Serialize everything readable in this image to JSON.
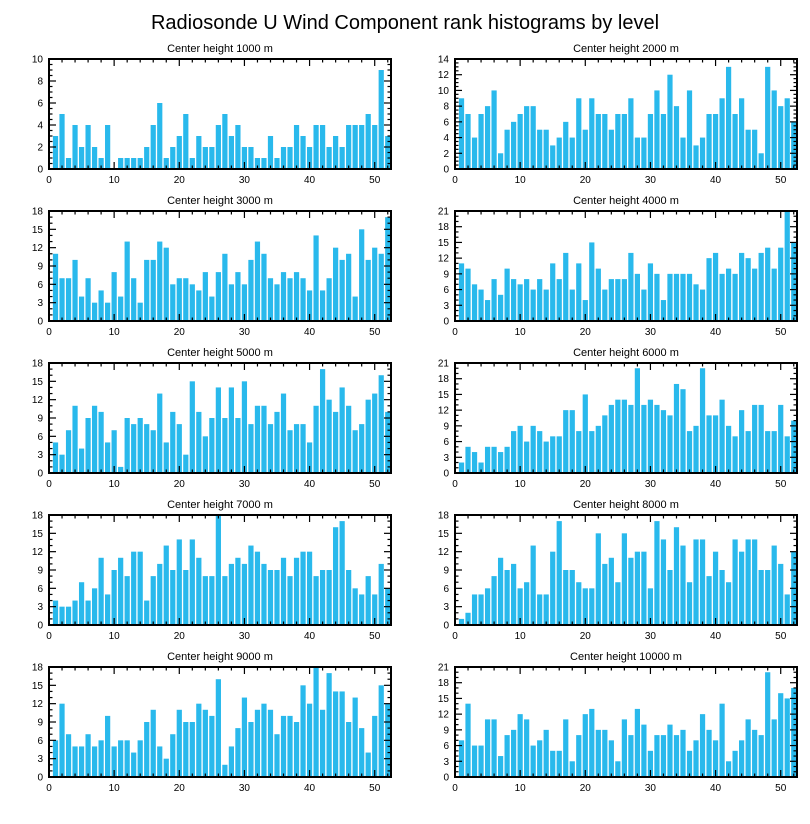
{
  "title": "Radiosonde U Wind Component rank histograms by level",
  "style": {
    "bar_color": "#29B9EC",
    "axis_color": "#000000",
    "background": "#FFFFFF"
  },
  "chart_data": [
    {
      "type": "bar",
      "title": "Center height 1000 m",
      "xlabel": "",
      "ylabel": "",
      "x_meaning": "rank (1..52)",
      "xlim": [
        0,
        52.5
      ],
      "xticks": [
        0,
        10,
        20,
        30,
        40,
        50
      ],
      "ylim": [
        0,
        10
      ],
      "ystep": 2,
      "grid": false,
      "legend": false,
      "values": [
        3,
        5,
        1,
        4,
        2,
        4,
        2,
        1,
        4,
        0,
        1,
        1,
        1,
        1,
        2,
        4,
        6,
        1,
        2,
        3,
        5,
        1,
        3,
        2,
        2,
        4,
        5,
        3,
        4,
        2,
        2,
        1,
        1,
        3,
        1,
        2,
        2,
        4,
        3,
        2,
        4,
        4,
        2,
        3,
        2,
        4,
        4,
        4,
        5,
        4,
        9,
        3
      ]
    },
    {
      "type": "bar",
      "title": "Center height 2000 m",
      "xlabel": "",
      "ylabel": "",
      "x_meaning": "rank (1..52)",
      "xlim": [
        0,
        52.5
      ],
      "xticks": [
        0,
        10,
        20,
        30,
        40,
        50
      ],
      "ylim": [
        0,
        14
      ],
      "ystep": 2,
      "grid": false,
      "legend": false,
      "values": [
        9,
        7,
        4,
        7,
        8,
        10,
        2,
        5,
        6,
        7,
        8,
        8,
        5,
        5,
        3,
        4,
        6,
        4,
        9,
        5,
        9,
        7,
        7,
        5,
        7,
        7,
        9,
        4,
        4,
        7,
        10,
        7,
        12,
        8,
        4,
        10,
        3,
        4,
        7,
        7,
        9,
        13,
        7,
        9,
        5,
        5,
        2,
        13,
        10,
        8,
        9,
        6
      ]
    },
    {
      "type": "bar",
      "title": "Center height 3000 m",
      "xlabel": "",
      "ylabel": "",
      "x_meaning": "rank (1..52)",
      "xlim": [
        0,
        52.5
      ],
      "xticks": [
        0,
        10,
        20,
        30,
        40,
        50
      ],
      "ylim": [
        0,
        18
      ],
      "ystep": 3,
      "grid": false,
      "legend": false,
      "values": [
        11,
        7,
        7,
        10,
        4,
        7,
        3,
        5,
        3,
        8,
        4,
        13,
        7,
        3,
        10,
        10,
        13,
        12,
        6,
        7,
        7,
        6,
        5,
        8,
        4,
        8,
        11,
        6,
        8,
        6,
        10,
        13,
        11,
        7,
        6,
        8,
        7,
        8,
        7,
        5,
        14,
        5,
        7,
        12,
        10,
        11,
        4,
        15,
        10,
        12,
        11,
        17
      ]
    },
    {
      "type": "bar",
      "title": "Center height 4000 m",
      "xlabel": "",
      "ylabel": "",
      "x_meaning": "rank (1..52)",
      "xlim": [
        0,
        52.5
      ],
      "xticks": [
        0,
        10,
        20,
        30,
        40,
        50
      ],
      "ylim": [
        0,
        21
      ],
      "ystep": 3,
      "grid": false,
      "legend": false,
      "values": [
        11,
        10,
        7,
        6,
        4,
        8,
        5,
        10,
        8,
        7,
        8,
        6,
        8,
        6,
        11,
        8,
        13,
        6,
        11,
        4,
        15,
        10,
        6,
        8,
        8,
        8,
        13,
        9,
        6,
        11,
        9,
        4,
        9,
        9,
        9,
        9,
        7,
        6,
        12,
        13,
        9,
        10,
        9,
        13,
        12,
        10,
        13,
        14,
        10,
        14,
        21,
        15
      ]
    },
    {
      "type": "bar",
      "title": "Center height 5000 m",
      "xlabel": "",
      "ylabel": "",
      "x_meaning": "rank (1..52)",
      "xlim": [
        0,
        52.5
      ],
      "xticks": [
        0,
        10,
        20,
        30,
        40,
        50
      ],
      "ylim": [
        0,
        18
      ],
      "ystep": 3,
      "grid": false,
      "legend": false,
      "values": [
        5,
        3,
        7,
        11,
        4,
        9,
        11,
        10,
        5,
        7,
        1,
        9,
        8,
        9,
        8,
        7,
        13,
        5,
        10,
        8,
        3,
        15,
        10,
        6,
        9,
        14,
        9,
        14,
        9,
        15,
        8,
        11,
        11,
        8,
        10,
        13,
        7,
        8,
        8,
        5,
        11,
        17,
        12,
        10,
        14,
        11,
        7,
        8,
        12,
        13,
        16,
        10
      ]
    },
    {
      "type": "bar",
      "title": "Center height 6000 m",
      "xlabel": "",
      "ylabel": "",
      "x_meaning": "rank (1..52)",
      "xlim": [
        0,
        52.5
      ],
      "xticks": [
        0,
        10,
        20,
        30,
        40,
        50
      ],
      "ylim": [
        0,
        21
      ],
      "ystep": 3,
      "grid": false,
      "legend": false,
      "values": [
        2,
        5,
        4,
        2,
        5,
        5,
        4,
        5,
        8,
        9,
        6,
        9,
        8,
        6,
        7,
        7,
        12,
        12,
        8,
        15,
        8,
        9,
        11,
        13,
        14,
        14,
        13,
        20,
        13,
        14,
        13,
        12,
        11,
        17,
        16,
        8,
        9,
        20,
        11,
        11,
        14,
        9,
        7,
        12,
        8,
        13,
        13,
        8,
        8,
        13,
        7,
        10
      ]
    },
    {
      "type": "bar",
      "title": "Center height 7000 m",
      "xlabel": "",
      "ylabel": "",
      "x_meaning": "rank (1..52)",
      "xlim": [
        0,
        52.5
      ],
      "xticks": [
        0,
        10,
        20,
        30,
        40,
        50
      ],
      "ylim": [
        0,
        18
      ],
      "ystep": 3,
      "grid": false,
      "legend": false,
      "values": [
        4,
        3,
        3,
        4,
        7,
        4,
        6,
        11,
        5,
        9,
        11,
        8,
        12,
        12,
        4,
        8,
        10,
        13,
        9,
        14,
        9,
        14,
        11,
        8,
        8,
        18,
        8,
        10,
        11,
        10,
        13,
        12,
        10,
        9,
        9,
        11,
        8,
        11,
        12,
        12,
        8,
        9,
        9,
        16,
        17,
        9,
        6,
        5,
        8,
        5,
        10,
        6
      ]
    },
    {
      "type": "bar",
      "title": "Center height 8000 m",
      "xlabel": "",
      "ylabel": "",
      "x_meaning": "rank (1..52)",
      "xlim": [
        0,
        52.5
      ],
      "xticks": [
        0,
        10,
        20,
        30,
        40,
        50
      ],
      "ylim": [
        0,
        18
      ],
      "ystep": 3,
      "grid": false,
      "legend": false,
      "values": [
        1,
        2,
        5,
        5,
        6,
        8,
        11,
        9,
        10,
        6,
        7,
        13,
        5,
        5,
        12,
        17,
        9,
        9,
        7,
        6,
        6,
        15,
        10,
        11,
        7,
        15,
        11,
        12,
        12,
        6,
        17,
        14,
        9,
        16,
        13,
        7,
        14,
        14,
        8,
        12,
        9,
        7,
        14,
        12,
        14,
        14,
        9,
        9,
        13,
        10,
        5,
        12
      ]
    },
    {
      "type": "bar",
      "title": "Center height 9000 m",
      "xlabel": "",
      "ylabel": "",
      "x_meaning": "rank (1..52)",
      "xlim": [
        0,
        52.5
      ],
      "xticks": [
        0,
        10,
        20,
        30,
        40,
        50
      ],
      "ylim": [
        0,
        18
      ],
      "ystep": 3,
      "grid": false,
      "legend": false,
      "values": [
        6,
        12,
        7,
        5,
        5,
        7,
        5,
        6,
        10,
        5,
        6,
        6,
        4,
        6,
        9,
        11,
        5,
        3,
        7,
        11,
        9,
        9,
        12,
        11,
        10,
        16,
        2,
        5,
        8,
        13,
        9,
        11,
        12,
        11,
        7,
        10,
        10,
        9,
        15,
        12,
        18,
        11,
        17,
        14,
        14,
        9,
        13,
        8,
        4,
        10,
        15,
        12
      ]
    },
    {
      "type": "bar",
      "title": "Center height 10000 m",
      "xlabel": "",
      "ylabel": "",
      "x_meaning": "rank (1..52)",
      "xlim": [
        0,
        52.5
      ],
      "xticks": [
        0,
        10,
        20,
        30,
        40,
        50
      ],
      "ylim": [
        0,
        21
      ],
      "ystep": 3,
      "grid": false,
      "legend": false,
      "values": [
        7,
        14,
        6,
        6,
        11,
        11,
        4,
        8,
        9,
        12,
        11,
        6,
        7,
        9,
        5,
        5,
        11,
        3,
        8,
        12,
        13,
        9,
        9,
        7,
        3,
        11,
        8,
        13,
        10,
        5,
        8,
        8,
        10,
        8,
        9,
        5,
        7,
        12,
        9,
        7,
        14,
        3,
        5,
        7,
        11,
        9,
        8,
        20,
        11,
        16,
        15,
        17
      ]
    }
  ]
}
